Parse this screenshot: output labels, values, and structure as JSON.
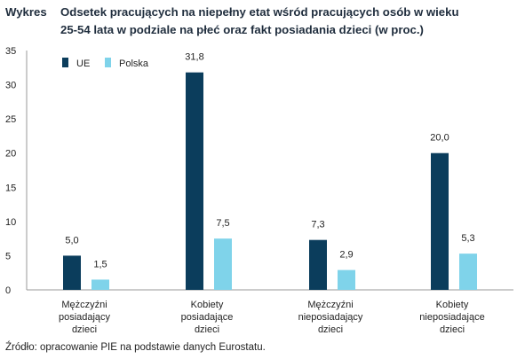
{
  "header": {
    "prefix": "Wykres",
    "title_line1": "Odsetek pracujących na niepełny etat wśród pracujących osób w wieku",
    "title_line2": "25-54 lata w podziale na płeć oraz fakt posiadania dzieci (w proc.)"
  },
  "source": "Źródło: opracowanie PIE na podstawie danych Eurostatu.",
  "chart_data": {
    "type": "bar",
    "categories": [
      [
        "Mężczyźni",
        "posiadający",
        "dzieci"
      ],
      [
        "Kobiety",
        "posiadające",
        "dzieci"
      ],
      [
        "Mężczyźni",
        "nieposiadający",
        "dzieci"
      ],
      [
        "Kobiety",
        "nieposiadające",
        "dzieci"
      ]
    ],
    "series": [
      {
        "name": "UE",
        "values": [
          5.0,
          31.8,
          7.3,
          20.0
        ],
        "labels": [
          "5,0",
          "31,8",
          "7,3",
          "20,0"
        ],
        "color": "#0b3d5c"
      },
      {
        "name": "Polska",
        "values": [
          1.5,
          7.5,
          2.9,
          5.3
        ],
        "labels": [
          "1,5",
          "7,5",
          "2,9",
          "5,3"
        ],
        "color": "#7fd3ea"
      }
    ],
    "ylim": [
      0,
      35
    ],
    "yticks": [
      "0",
      "5",
      "10",
      "15",
      "20",
      "25",
      "30",
      "35"
    ],
    "legend_position": "top-left",
    "grid": false
  }
}
